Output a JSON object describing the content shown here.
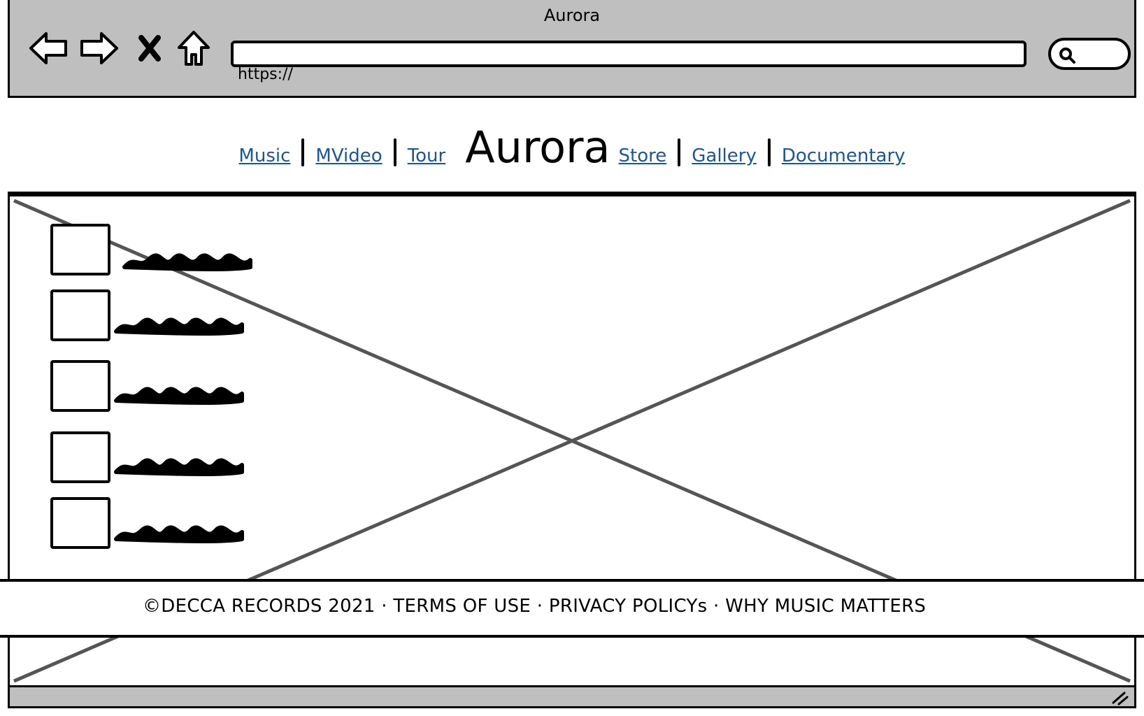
{
  "window": {
    "title": "Aurora"
  },
  "toolbar": {
    "back_icon": "arrow-left-icon",
    "forward_icon": "arrow-right-icon",
    "stop_icon": "close-icon",
    "home_icon": "home-icon",
    "url": "https://",
    "search_icon": "search-icon"
  },
  "header": {
    "brand": "Aurora",
    "nav_left": [
      {
        "label": "Music"
      },
      {
        "label": "MVideo"
      },
      {
        "label": "Tour"
      }
    ],
    "nav_right": [
      {
        "label": "Store"
      },
      {
        "label": "Gallery"
      },
      {
        "label": "Documentary"
      }
    ]
  },
  "main": {
    "list_count_visible": 5
  },
  "footer": {
    "text": "©DECCA RECORDS 2021 · TERMS OF USE · PRIVACY POLICYs · WHY MUSIC MATTERS"
  },
  "colors": {
    "chrome": "#bfbfbf",
    "link": "#1a56a0",
    "placeholder_line": "#555555"
  }
}
